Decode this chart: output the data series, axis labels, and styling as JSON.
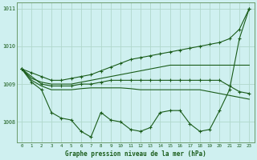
{
  "title": "Graphe pression niveau de la mer (hPa)",
  "background_color": "#cff0f0",
  "grid_color": "#b0d8cc",
  "line_color": "#1a5c1a",
  "xlim": [
    -0.5,
    23.5
  ],
  "ylim": [
    1007.45,
    1011.15
  ],
  "yticks": [
    1008,
    1009,
    1010,
    1011
  ],
  "xticks": [
    0,
    1,
    2,
    3,
    4,
    5,
    6,
    7,
    8,
    9,
    10,
    11,
    12,
    13,
    14,
    15,
    16,
    17,
    18,
    19,
    20,
    21,
    22,
    23
  ],
  "series": [
    {
      "name": "zigzag_with_markers",
      "x": [
        0,
        1,
        2,
        3,
        4,
        5,
        6,
        7,
        8,
        9,
        10,
        11,
        12,
        13,
        14,
        15,
        16,
        17,
        18,
        19,
        20,
        21,
        22,
        23
      ],
      "y": [
        1009.4,
        1009.05,
        1008.85,
        1008.25,
        1008.1,
        1008.05,
        1007.75,
        1007.6,
        1008.25,
        1008.05,
        1008.0,
        1007.8,
        1007.75,
        1007.85,
        1008.25,
        1008.3,
        1008.3,
        1007.95,
        1007.75,
        1007.8,
        1008.3,
        1008.85,
        1010.2,
        1011.0
      ],
      "has_markers": true
    },
    {
      "name": "smooth_flat_upper",
      "x": [
        0,
        1,
        2,
        3,
        4,
        5,
        6,
        7,
        8,
        9,
        10,
        11,
        12,
        13,
        14,
        15,
        16,
        17,
        18,
        19,
        20,
        21,
        22,
        23
      ],
      "y": [
        1009.4,
        1009.15,
        1009.05,
        1009.0,
        1009.0,
        1009.0,
        1009.05,
        1009.1,
        1009.15,
        1009.2,
        1009.25,
        1009.3,
        1009.35,
        1009.4,
        1009.45,
        1009.5,
        1009.5,
        1009.5,
        1009.5,
        1009.5,
        1009.5,
        1009.5,
        1009.5,
        1009.5
      ],
      "has_markers": false
    },
    {
      "name": "smooth_flat_lower",
      "x": [
        0,
        1,
        2,
        3,
        4,
        5,
        6,
        7,
        8,
        9,
        10,
        11,
        12,
        13,
        14,
        15,
        16,
        17,
        18,
        19,
        20,
        21,
        22,
        23
      ],
      "y": [
        1009.4,
        1009.1,
        1008.95,
        1008.85,
        1008.85,
        1008.85,
        1008.88,
        1008.9,
        1008.9,
        1008.9,
        1008.9,
        1008.88,
        1008.85,
        1008.85,
        1008.85,
        1008.85,
        1008.85,
        1008.85,
        1008.85,
        1008.8,
        1008.75,
        1008.7,
        1008.65,
        1008.6
      ],
      "has_markers": false
    },
    {
      "name": "rising_with_markers",
      "x": [
        0,
        1,
        2,
        3,
        4,
        5,
        6,
        7,
        8,
        9,
        10,
        11,
        12,
        13,
        14,
        15,
        16,
        17,
        18,
        19,
        20,
        21,
        22,
        23
      ],
      "y": [
        1009.4,
        1009.3,
        1009.2,
        1009.1,
        1009.1,
        1009.15,
        1009.2,
        1009.25,
        1009.35,
        1009.45,
        1009.55,
        1009.65,
        1009.7,
        1009.75,
        1009.8,
        1009.85,
        1009.9,
        1009.95,
        1010.0,
        1010.05,
        1010.1,
        1010.2,
        1010.45,
        1011.0
      ],
      "has_markers": true
    },
    {
      "name": "flat_middle_with_markers",
      "x": [
        0,
        2,
        3,
        4,
        5,
        6,
        7,
        8,
        9,
        10,
        11,
        12,
        13,
        14,
        15,
        16,
        17,
        18,
        19,
        20,
        21,
        22,
        23
      ],
      "y": [
        1009.4,
        1009.0,
        1008.95,
        1008.95,
        1008.95,
        1009.0,
        1009.0,
        1009.05,
        1009.1,
        1009.1,
        1009.1,
        1009.1,
        1009.1,
        1009.1,
        1009.1,
        1009.1,
        1009.1,
        1009.1,
        1009.1,
        1009.1,
        1008.95,
        1008.8,
        1008.75
      ],
      "has_markers": true
    }
  ]
}
